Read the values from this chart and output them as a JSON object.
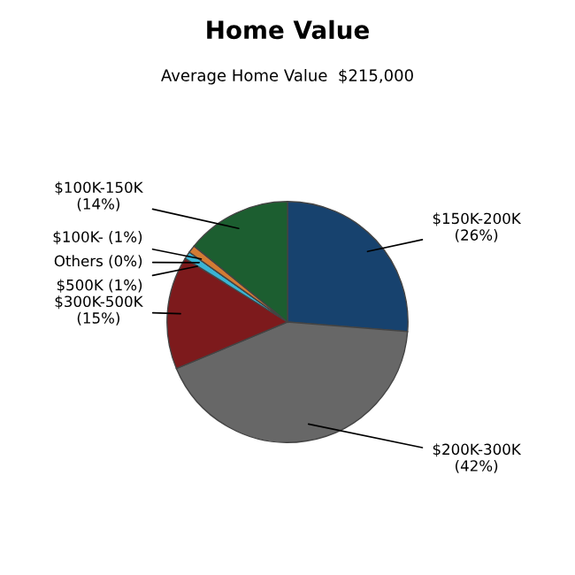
{
  "chart_data": {
    "type": "pie",
    "title": "Home Value",
    "subtitle": "Average Home Value  $215,000",
    "categories": [
      "$150K-200K",
      "$200K-300K",
      "$300K-500K",
      "$500K",
      "Others",
      "$100K-",
      "$100K-150K"
    ],
    "values": [
      26,
      42,
      15,
      1,
      0,
      1,
      14
    ],
    "value_labels": [
      "(26%)",
      "(42%)",
      "(15%)",
      "(1%)",
      "(0%)",
      "(1%)",
      "(14%)"
    ],
    "colors": [
      "#17426e",
      "#676767",
      "#7d1a1c",
      "#3ab4d4",
      "#8a8a8a",
      "#d37b34",
      "#1c5e30"
    ]
  }
}
